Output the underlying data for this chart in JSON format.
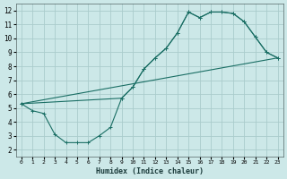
{
  "xlabel": "Humidex (Indice chaleur)",
  "background_color": "#cce8e8",
  "grid_color": "#aacccc",
  "line_color": "#1a6e64",
  "xlim": [
    -0.5,
    23.5
  ],
  "ylim": [
    1.5,
    12.5
  ],
  "xticks": [
    0,
    1,
    2,
    3,
    4,
    5,
    6,
    7,
    8,
    9,
    10,
    11,
    12,
    13,
    14,
    15,
    16,
    17,
    18,
    19,
    20,
    21,
    22,
    23
  ],
  "yticks": [
    2,
    3,
    4,
    5,
    6,
    7,
    8,
    9,
    10,
    11,
    12
  ],
  "line1_x": [
    0,
    1,
    2,
    3,
    4,
    5,
    6,
    7,
    8,
    9,
    10,
    11,
    12,
    13,
    14,
    15,
    16,
    17,
    18,
    19,
    20,
    21,
    22,
    23
  ],
  "line1_y": [
    5.3,
    4.8,
    4.6,
    3.1,
    2.5,
    2.5,
    2.5,
    3.0,
    3.6,
    5.7,
    6.5,
    7.8,
    8.6,
    9.3,
    10.4,
    11.9,
    11.5,
    11.9,
    11.9,
    11.8,
    11.2,
    10.1,
    9.0,
    8.6
  ],
  "line2_x": [
    0,
    9,
    10,
    11,
    12,
    13,
    14,
    15,
    16,
    17,
    18,
    19,
    20,
    21,
    22,
    23
  ],
  "line2_y": [
    5.3,
    5.7,
    6.5,
    7.8,
    8.6,
    9.3,
    10.4,
    11.9,
    11.5,
    11.9,
    11.9,
    11.8,
    11.2,
    10.1,
    9.0,
    8.6
  ],
  "line3_x": [
    0,
    23
  ],
  "line3_y": [
    5.3,
    8.6
  ],
  "marker": "+"
}
